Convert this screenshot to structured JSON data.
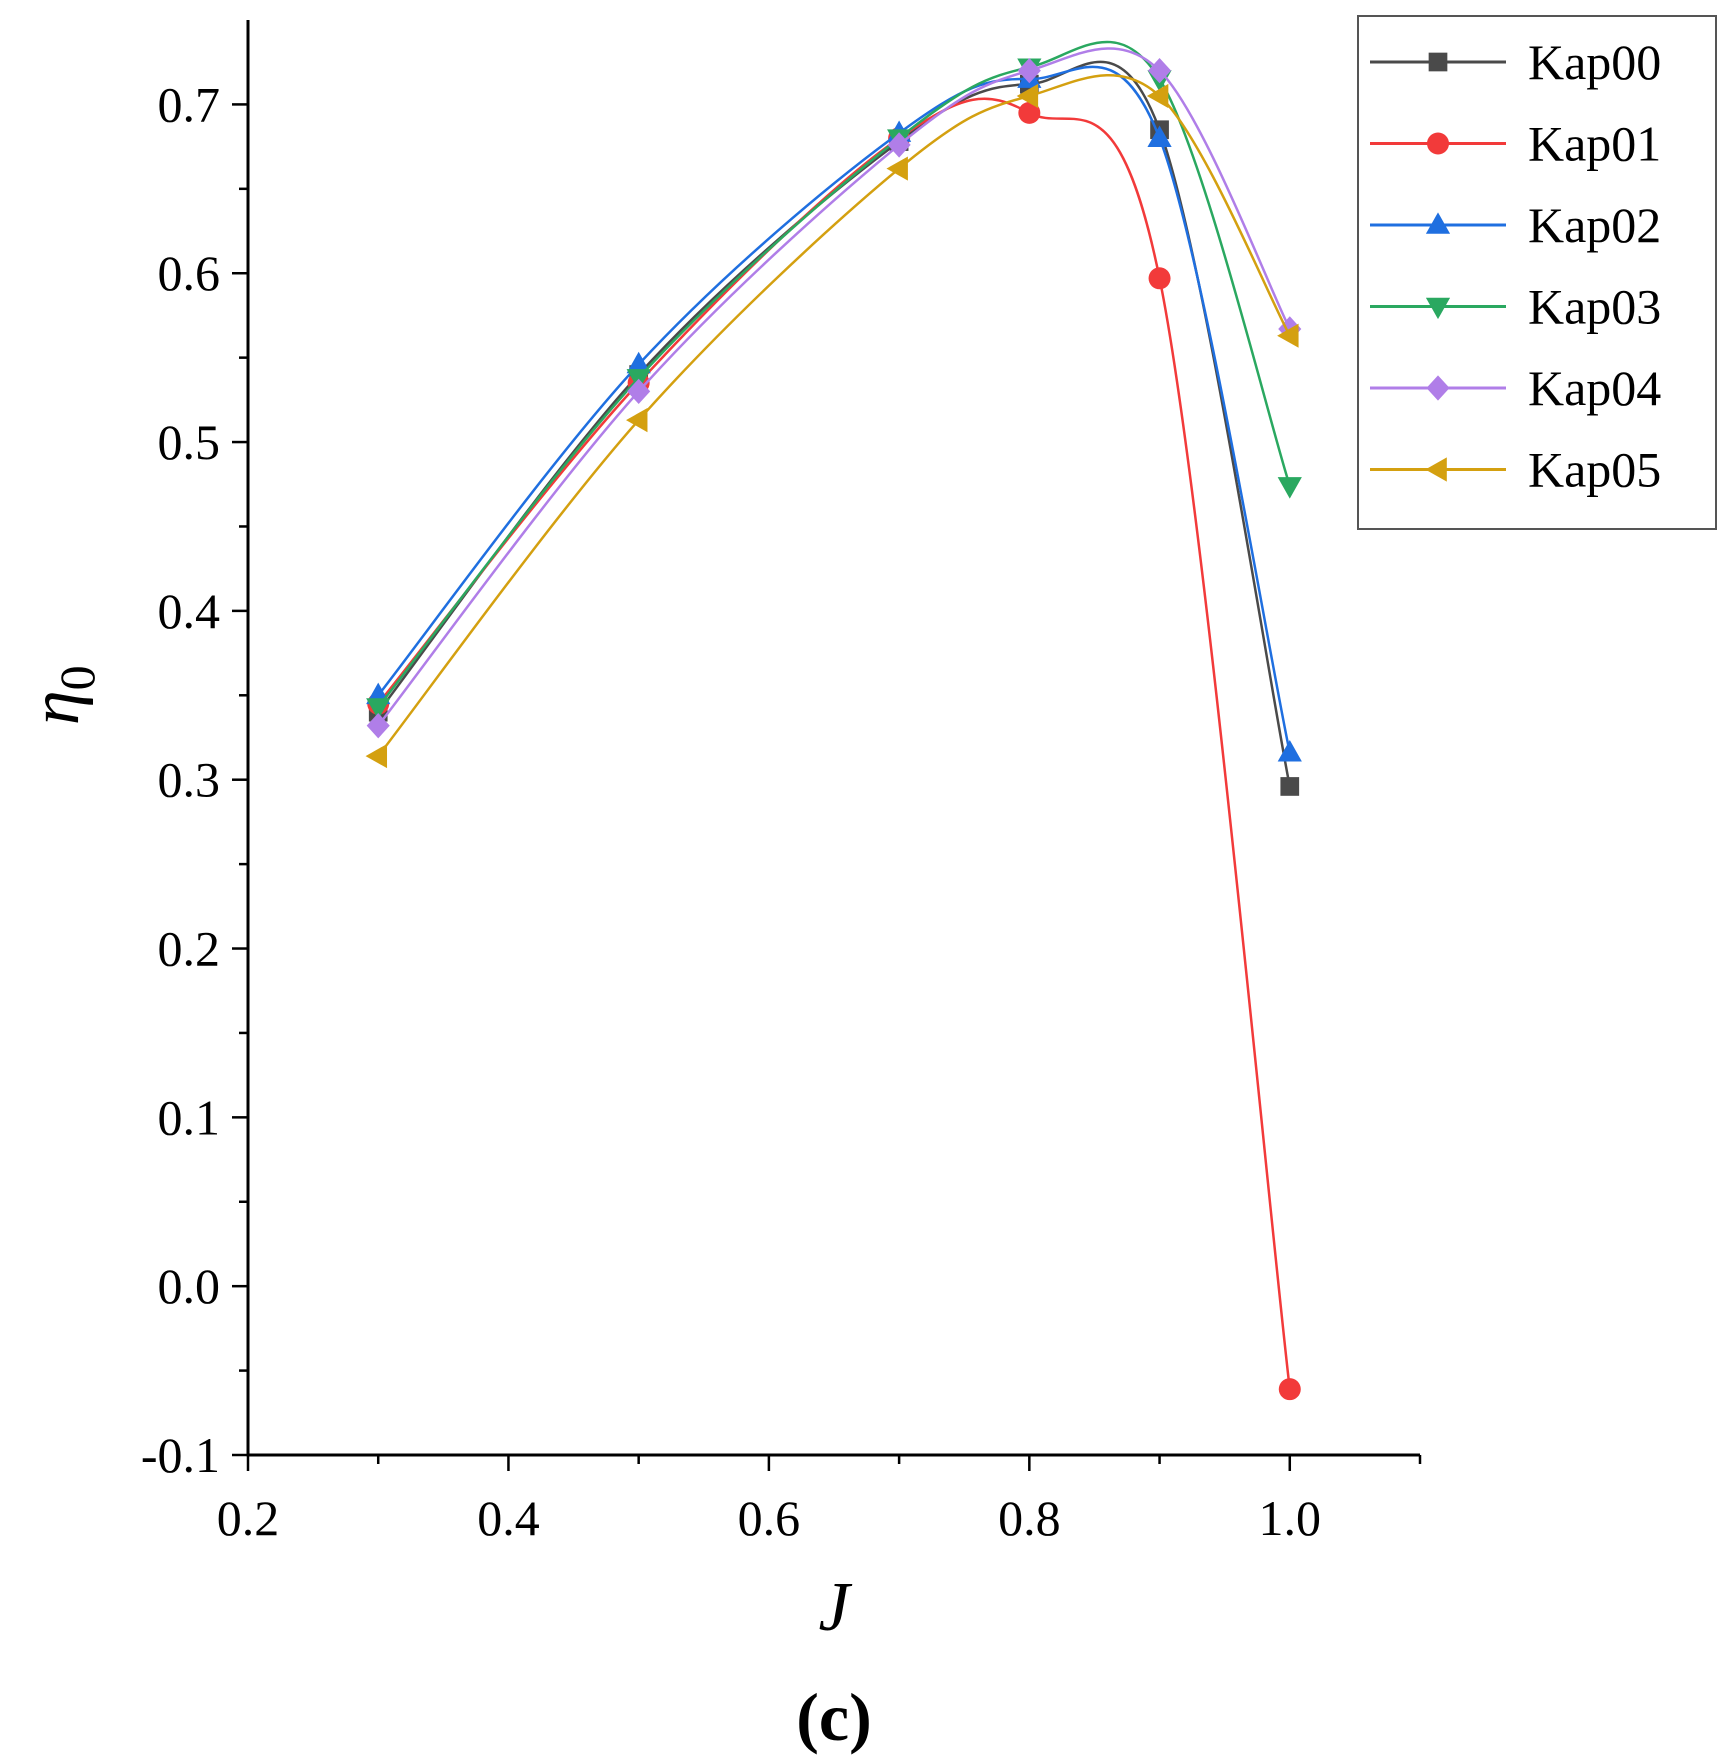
{
  "chart_data": {
    "type": "line",
    "title": "",
    "caption": "(c)",
    "xlabel": "J",
    "ylabel": "η",
    "ylabel_subscript": "0",
    "xlim": [
      0.2,
      1.1
    ],
    "ylim": [
      -0.1,
      0.75
    ],
    "xticks": [
      "0.2",
      "0.4",
      "0.6",
      "0.8",
      "1.0"
    ],
    "yticks": [
      "-0.1",
      "0.0",
      "0.1",
      "0.2",
      "0.3",
      "0.4",
      "0.5",
      "0.6",
      "0.7"
    ],
    "grid": false,
    "legend_position": "top-right",
    "x": [
      0.3,
      0.5,
      0.7,
      0.8,
      0.9,
      1.0
    ],
    "series": [
      {
        "name": "Kap00",
        "color": "#4a4a4a",
        "marker": "square",
        "values": [
          0.34,
          0.54,
          0.678,
          0.712,
          0.685,
          0.296
        ]
      },
      {
        "name": "Kap01",
        "color": "#f23a3a",
        "marker": "circle",
        "values": [
          0.345,
          0.535,
          0.68,
          0.695,
          0.597,
          -0.061
        ]
      },
      {
        "name": "Kap02",
        "color": "#1f6fe0",
        "marker": "triangle-up",
        "values": [
          0.35,
          0.546,
          0.683,
          0.715,
          0.68,
          0.316
        ]
      },
      {
        "name": "Kap03",
        "color": "#2aa860",
        "marker": "triangle-down",
        "values": [
          0.343,
          0.538,
          0.68,
          0.722,
          0.715,
          0.474
        ]
      },
      {
        "name": "Kap04",
        "color": "#b07ee8",
        "marker": "diamond",
        "values": [
          0.332,
          0.53,
          0.676,
          0.72,
          0.72,
          0.567
        ]
      },
      {
        "name": "Kap05",
        "color": "#d4a010",
        "marker": "triangle-left",
        "values": [
          0.314,
          0.513,
          0.662,
          0.705,
          0.705,
          0.563
        ]
      }
    ]
  }
}
